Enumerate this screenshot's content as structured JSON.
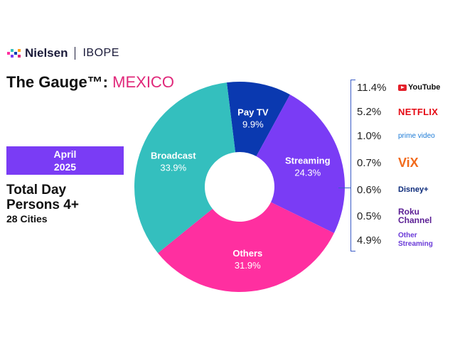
{
  "brand": {
    "name": "Nielsen",
    "partner": "IBOPE"
  },
  "headline": {
    "title": "The Gauge™:",
    "country": "MEXICO"
  },
  "period": {
    "month": "April",
    "year": "2025"
  },
  "metric": {
    "line1": "Total Day",
    "line2": "Persons 4+",
    "line3": "28 Cities"
  },
  "colors": {
    "pay_tv": "#0a39b0",
    "streaming": "#7a3cf5",
    "others": "#ff2fa0",
    "broadcast": "#34bfbe",
    "accent": "#e0287a"
  },
  "chart_data": {
    "type": "pie",
    "donut": true,
    "categories": [
      "Pay TV",
      "Streaming",
      "Others",
      "Broadcast"
    ],
    "values": [
      9.9,
      24.3,
      31.9,
      33.9
    ],
    "value_labels": [
      "9.9%",
      "24.3%",
      "31.9%",
      "33.9%"
    ],
    "streaming_breakdown": [
      {
        "name": "YouTube",
        "value": 11.4,
        "label": "11.4%",
        "color": "#111111"
      },
      {
        "name": "NETFLIX",
        "value": 5.2,
        "label": "5.2%",
        "color": "#e50914"
      },
      {
        "name": "prime video",
        "value": 1.0,
        "label": "1.0%",
        "color": "#1b7ad6"
      },
      {
        "name": "ViX",
        "value": 0.7,
        "label": "0.7%",
        "color": "#f26a1b"
      },
      {
        "name": "Disney+",
        "value": 0.6,
        "label": "0.6%",
        "color": "#0b2a7a"
      },
      {
        "name": "Roku Channel",
        "value": 0.5,
        "label": "0.5%",
        "color": "#5b1f94"
      },
      {
        "name": "Other Streaming",
        "value": 4.9,
        "label": "4.9%",
        "color": "#6a3ad8"
      }
    ]
  }
}
